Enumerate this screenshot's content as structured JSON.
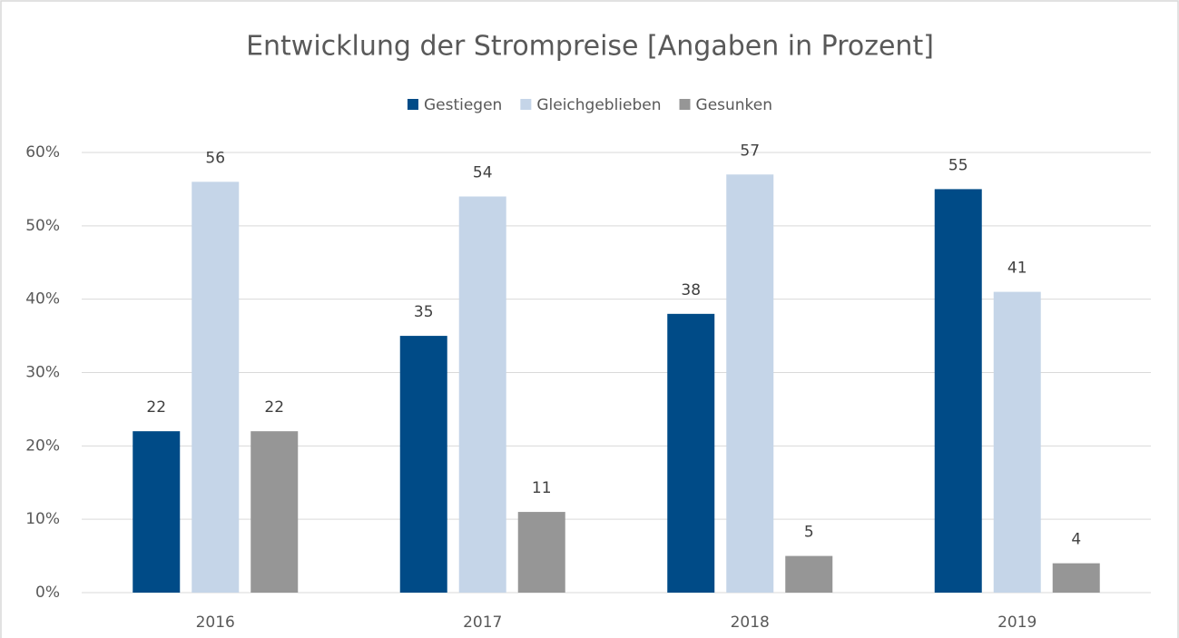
{
  "chart_data": {
    "type": "bar",
    "title": "Entwicklung der Strompreise [Angaben in Prozent]",
    "categories": [
      "2016",
      "2017",
      "2018",
      "2019"
    ],
    "series": [
      {
        "name": "Gestiegen",
        "color": "#004b87",
        "values": [
          22,
          35,
          38,
          55
        ]
      },
      {
        "name": "Gleichgeblieben",
        "color": "#c5d5e8",
        "values": [
          56,
          54,
          57,
          41
        ]
      },
      {
        "name": "Gesunken",
        "color": "#969696",
        "values": [
          22,
          11,
          5,
          4
        ]
      }
    ],
    "ylim": [
      0,
      60
    ],
    "yticks": [
      {
        "value": 0,
        "label": "0%"
      },
      {
        "value": 10,
        "label": "10%"
      },
      {
        "value": 20,
        "label": "20%"
      },
      {
        "value": 30,
        "label": "30%"
      },
      {
        "value": 40,
        "label": "40%"
      },
      {
        "value": 50,
        "label": "50%"
      },
      {
        "value": 60,
        "label": "60%"
      }
    ],
    "grid": true,
    "legend": "top"
  }
}
